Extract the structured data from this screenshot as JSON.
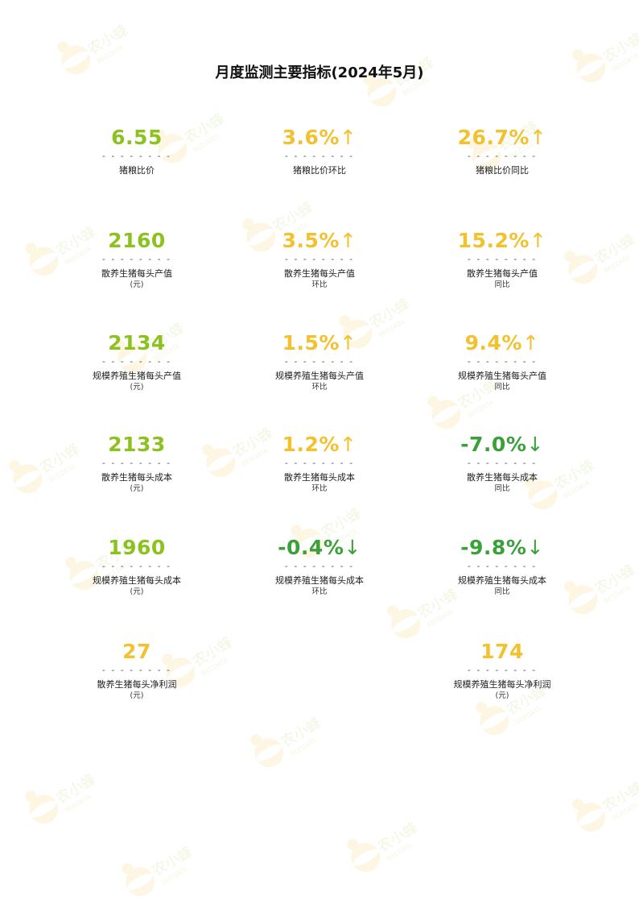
{
  "title": "月度监测主要指标(2024年5月)",
  "colors": {
    "green_light": "#8cc21f",
    "yellow": "#f2c12e",
    "green_dark": "#3aa13a"
  },
  "watermark": {
    "text": "农小蜂",
    "sub": "BEEDATA"
  },
  "separator": "- - - - - - - -",
  "metrics": {
    "r1c1": {
      "value": "6.55",
      "arrow": "",
      "label": "猪粮比价",
      "sub": ""
    },
    "r1c2": {
      "value": "3.6%",
      "arrow": "↑",
      "label": "猪粮比价环比",
      "sub": ""
    },
    "r1c3": {
      "value": "26.7%",
      "arrow": "↑",
      "label": "猪粮比价同比",
      "sub": ""
    },
    "r2c1": {
      "value": "2160",
      "arrow": "",
      "label": "散养生猪每头产值",
      "sub": "(元)"
    },
    "r2c2": {
      "value": "3.5%",
      "arrow": "↑",
      "label": "散养生猪每头产值",
      "sub": "环比"
    },
    "r2c3": {
      "value": "15.2%",
      "arrow": "↑",
      "label": "散养生猪每头产值",
      "sub": "同比"
    },
    "r3c1": {
      "value": "2134",
      "arrow": "",
      "label": "规模养殖生猪每头产值",
      "sub": "(元)"
    },
    "r3c2": {
      "value": "1.5%",
      "arrow": "↑",
      "label": "规模养殖生猪每头产值",
      "sub": "环比"
    },
    "r3c3": {
      "value": "9.4%",
      "arrow": "↑",
      "label": "规模养殖生猪每头产值",
      "sub": "同比"
    },
    "r4c1": {
      "value": "2133",
      "arrow": "",
      "label": "散养生猪每头成本",
      "sub": "(元)"
    },
    "r4c2": {
      "value": "1.2%",
      "arrow": "↑",
      "label": "散养生猪每头成本",
      "sub": "环比"
    },
    "r4c3": {
      "value": "-7.0%",
      "arrow": "↓",
      "label": "散养生猪每头成本",
      "sub": "同比"
    },
    "r5c1": {
      "value": "1960",
      "arrow": "",
      "label": "规模养殖生猪每头成本",
      "sub": "(元)"
    },
    "r5c2": {
      "value": "-0.4%",
      "arrow": "↓",
      "label": "规模养殖生猪每头成本",
      "sub": "环比"
    },
    "r5c3": {
      "value": "-9.8%",
      "arrow": "↓",
      "label": "规模养殖生猪每头成本",
      "sub": "同比"
    },
    "r6c1": {
      "value": "27",
      "arrow": "",
      "label": "散养生猪每头净利润",
      "sub": "(元)"
    },
    "r6c3": {
      "value": "174",
      "arrow": "",
      "label": "规模养殖生猪每头净利润",
      "sub": "(元)"
    }
  }
}
